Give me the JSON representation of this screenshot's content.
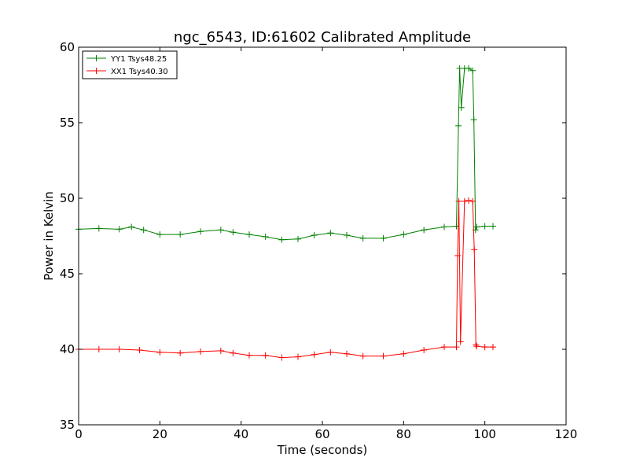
{
  "chart_data": {
    "type": "line",
    "title": "ngc_6543, ID:61602 Calibrated Amplitude",
    "xlabel": "Time (seconds)",
    "ylabel": "Power in Kelvin",
    "xlim": [
      0,
      120
    ],
    "ylim": [
      35,
      60
    ],
    "xticks": [
      0,
      20,
      40,
      60,
      80,
      100,
      120
    ],
    "yticks": [
      35,
      40,
      45,
      50,
      55,
      60
    ],
    "grid": false,
    "legend_position": "top-left",
    "marker": "+",
    "series": [
      {
        "name": "YY1 Tsys48.25",
        "color": "#008000",
        "x": [
          0,
          5,
          10,
          13,
          16,
          20,
          25,
          30,
          35,
          38,
          42,
          46,
          50,
          54,
          58,
          62,
          66,
          70,
          75,
          80,
          85,
          90,
          93,
          93.5,
          93.8,
          94.2,
          95,
          96,
          97,
          97.3,
          97.7,
          98,
          100,
          102
        ],
        "y": [
          47.95,
          48.0,
          47.95,
          48.1,
          47.9,
          47.6,
          47.6,
          47.8,
          47.9,
          47.75,
          47.6,
          47.45,
          47.25,
          47.3,
          47.55,
          47.7,
          47.55,
          47.35,
          47.35,
          47.6,
          47.9,
          48.1,
          48.15,
          54.8,
          58.6,
          56.0,
          58.6,
          58.6,
          58.45,
          55.2,
          47.9,
          48.1,
          48.15,
          48.15
        ]
      },
      {
        "name": "XX1 Tsys40.30",
        "color": "#ff0000",
        "x": [
          0,
          5,
          10,
          15,
          20,
          25,
          30,
          35,
          38,
          42,
          46,
          50,
          54,
          58,
          62,
          66,
          70,
          75,
          80,
          85,
          90,
          93,
          93.3,
          93.6,
          94,
          95,
          96,
          97,
          97.4,
          97.8,
          98,
          100,
          102
        ],
        "y": [
          40.0,
          40.0,
          40.0,
          39.95,
          39.8,
          39.75,
          39.85,
          39.9,
          39.75,
          39.6,
          39.6,
          39.45,
          39.5,
          39.65,
          39.8,
          39.7,
          39.55,
          39.55,
          39.7,
          39.95,
          40.15,
          40.15,
          46.2,
          49.8,
          40.5,
          49.8,
          49.85,
          49.8,
          46.6,
          40.3,
          40.2,
          40.15,
          40.15
        ]
      }
    ]
  }
}
